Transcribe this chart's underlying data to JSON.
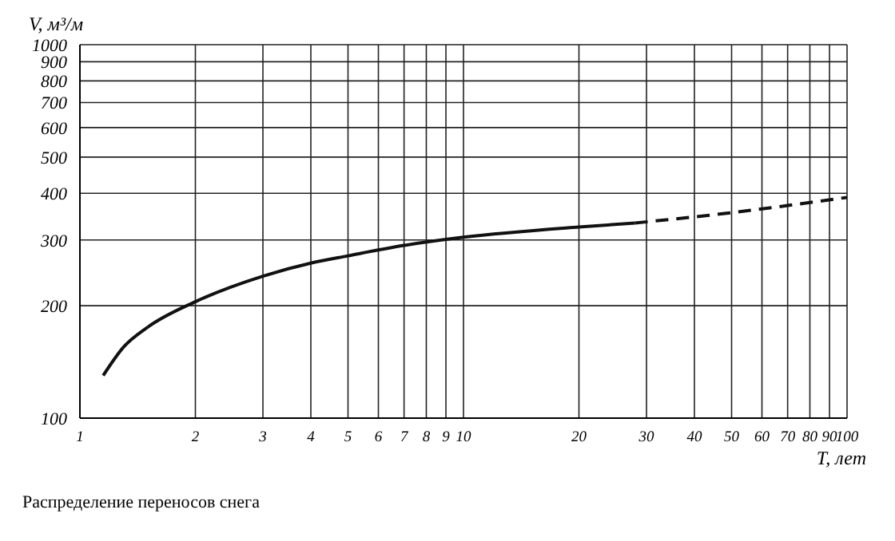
{
  "chart_data": {
    "type": "line",
    "xlabel": "T, лет",
    "ylabel": "V, м³/м",
    "annotations": [
      "Распределение переносов снега"
    ],
    "log": "xy",
    "grid": true,
    "marker": "none",
    "xlim": [
      1,
      100
    ],
    "ylim": [
      100,
      1000
    ],
    "xticks": [
      1,
      2,
      3,
      4,
      5,
      6,
      7,
      8,
      9,
      10,
      20,
      30,
      40,
      50,
      60,
      70,
      80,
      90,
      100
    ],
    "yticks": [
      100,
      200,
      300,
      400,
      500,
      600,
      700,
      800,
      900,
      1000
    ],
    "series": [
      {
        "color": "#111111",
        "line_style": "solid",
        "x": [
          1.15,
          1.3,
          1.5,
          2,
          3,
          4,
          5,
          7,
          10,
          20,
          28
        ],
        "values": [
          130,
          155,
          175,
          205,
          240,
          260,
          272,
          290,
          305,
          325,
          333
        ]
      },
      {
        "color": "#111111",
        "line_style": "dashed",
        "x": [
          28,
          50,
          100
        ],
        "values": [
          333,
          355,
          390
        ]
      }
    ]
  }
}
